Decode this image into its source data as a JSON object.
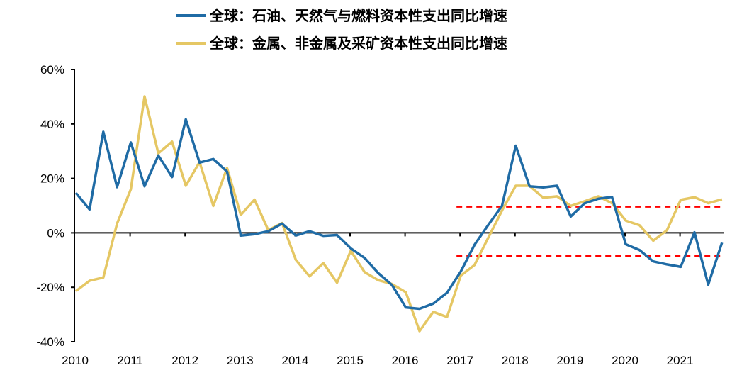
{
  "chart_data": {
    "type": "line",
    "title": "",
    "xlabel": "",
    "ylabel": "",
    "ylim": [
      -40,
      60
    ],
    "y_ticks": [
      "60%",
      "40%",
      "20%",
      "0%",
      "-20%",
      "-40%"
    ],
    "y_tick_values": [
      60,
      40,
      20,
      0,
      -20,
      -40
    ],
    "x_tick_labels": [
      "2010",
      "2011",
      "2012",
      "2013",
      "2014",
      "2015",
      "2016",
      "2017",
      "2018",
      "2019",
      "2020",
      "2021"
    ],
    "x_frequency": "quarterly, 2010Q1–2021Q4",
    "grid": false,
    "legend_placement": "top-center",
    "series": [
      {
        "name": "全球：石油、天然气与燃料资本性支出同比增速",
        "color": "#1F6BA5",
        "values": [
          14.7,
          8.6,
          37.1,
          16.8,
          33.2,
          17.1,
          28.4,
          20.5,
          41.7,
          25.8,
          27.1,
          22.5,
          -1.0,
          -0.5,
          0.6,
          3.4,
          -1.0,
          0.6,
          -1.1,
          -0.8,
          -5.7,
          -9.2,
          -14.8,
          -19.2,
          -27.4,
          -27.9,
          -26.0,
          -22.0,
          -14.2,
          -4.4,
          2.9,
          9.9,
          32.0,
          17.1,
          16.7,
          17.3,
          6.0,
          10.8,
          12.5,
          13.2,
          -4.2,
          -6.3,
          -10.5,
          -11.6,
          -12.5,
          0.2,
          -19.0,
          -3.6
        ]
      },
      {
        "name": "全球：金属、非金属及采矿资本性支出同比增速",
        "color": "#E5C764",
        "values": [
          -21.4,
          -17.6,
          -16.4,
          3.4,
          16.0,
          50.1,
          29.2,
          33.5,
          17.3,
          26.0,
          9.9,
          23.8,
          6.6,
          12.2,
          1.0,
          3.6,
          -9.9,
          -16.0,
          -11.1,
          -18.3,
          -6.6,
          -14.4,
          -17.4,
          -18.8,
          -21.8,
          -36.1,
          -29.0,
          -30.9,
          -15.7,
          -11.8,
          -1.8,
          8.2,
          17.3,
          17.3,
          12.9,
          13.4,
          9.9,
          11.6,
          13.4,
          10.9,
          4.5,
          2.8,
          -2.9,
          1.0,
          12.1,
          13.1,
          10.9,
          12.3
        ]
      }
    ],
    "reference_lines": [
      {
        "value": 9.5,
        "from": "2017Q1",
        "color": "#FF0000",
        "style": "dashed"
      },
      {
        "value": -8.5,
        "from": "2017Q1",
        "color": "#FF0000",
        "style": "dashed"
      }
    ]
  }
}
